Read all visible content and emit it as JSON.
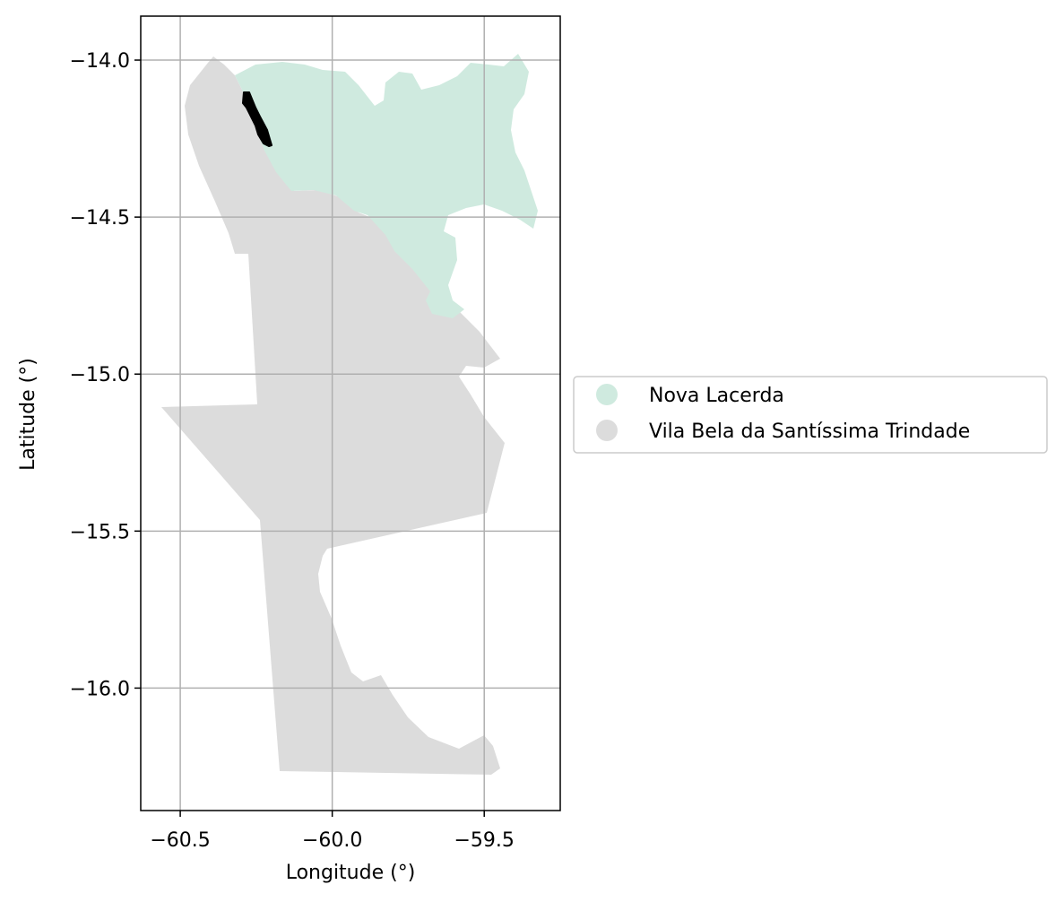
{
  "map": {
    "xlabel": "Longitude (°)",
    "ylabel": "Latitude (°)",
    "x_ticks": [
      -60.5,
      -60.0,
      -59.5
    ],
    "y_ticks": [
      -14.0,
      -14.5,
      -15.0,
      -15.5,
      -16.0
    ],
    "x_tick_labels": [
      "−60.5",
      "−60.0",
      "−59.5"
    ],
    "y_tick_labels": [
      "−14.0",
      "−14.5",
      "−15.0",
      "−15.5",
      "−16.0"
    ],
    "xlim": [
      -60.63,
      -59.25
    ],
    "ylim": [
      -16.39,
      -13.86
    ],
    "grid": true,
    "legend_position": "right, outside plot",
    "legend": [
      {
        "label": "Nova Lacerda",
        "color": "#cfeadf"
      },
      {
        "label": "Vila Bela da Santíssima Trindade",
        "color": "#dcdcdc"
      }
    ],
    "regions": [
      {
        "name": "Vila Bela da Santíssima Trindade",
        "color": "#dcdcdc"
      },
      {
        "name": "Nova Lacerda",
        "color": "#cfeadf"
      }
    ],
    "highlight_color": "#000000"
  }
}
